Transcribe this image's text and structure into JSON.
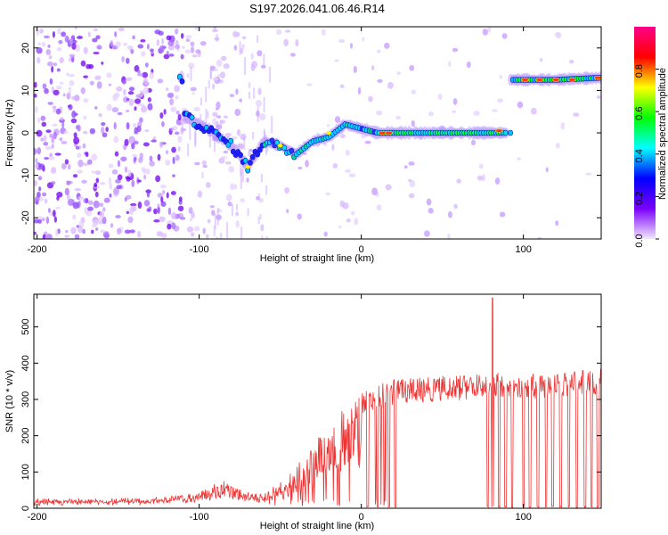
{
  "title": "S197.2026.041.06.46.R14",
  "chart_data": [
    {
      "type": "heatmap",
      "xlabel": "Height of straight line (km)",
      "ylabel": "Frequency (Hz)",
      "xlim": [
        -202,
        148
      ],
      "ylim": [
        -25,
        25
      ],
      "xticks": [
        -200,
        -100,
        0,
        100
      ],
      "yticks": [
        20,
        10,
        0,
        -10,
        -20
      ],
      "colorbar": {
        "label": "Normalized spectral amplitude",
        "range": [
          0,
          1
        ],
        "ticks": [
          "0.0",
          "0.2",
          "0.4",
          "0.6",
          "0.8"
        ],
        "colors": [
          "#f3e8ff",
          "#7a00ff",
          "#0000ff",
          "#00ffff",
          "#00ff00",
          "#ffff00",
          "#ff0000",
          "#ff0088"
        ]
      },
      "ridge": [
        {
          "x": -110,
          "y": 4
        },
        {
          "x": -95,
          "y": 1
        },
        {
          "x": -80,
          "y": -3
        },
        {
          "x": -70,
          "y": -8
        },
        {
          "x": -60,
          "y": -2
        },
        {
          "x": -50,
          "y": -3
        },
        {
          "x": -40,
          "y": -5
        },
        {
          "x": -30,
          "y": -2
        },
        {
          "x": -20,
          "y": -1
        },
        {
          "x": -10,
          "y": 2
        },
        {
          "x": 0,
          "y": 1
        },
        {
          "x": 10,
          "y": 0
        },
        {
          "x": 40,
          "y": 0
        },
        {
          "x": 70,
          "y": 0
        },
        {
          "x": 90,
          "y": 0
        },
        {
          "x": 92,
          "y": 12.5
        },
        {
          "x": 120,
          "y": 12.5
        },
        {
          "x": 148,
          "y": 13
        }
      ]
    },
    {
      "type": "line",
      "xlabel": "Height of straight line (km)",
      "ylabel": "SNR (10 * v/v)",
      "xlim": [
        -202,
        148
      ],
      "ylim": [
        0,
        590
      ],
      "xticks": [
        -200,
        -100,
        0,
        100
      ],
      "yticks": [
        500,
        400,
        300,
        200,
        100,
        0
      ],
      "series_color": "#ee3333",
      "envelope": [
        {
          "x": -202,
          "y": 20
        },
        {
          "x": -150,
          "y": 22
        },
        {
          "x": -120,
          "y": 25
        },
        {
          "x": -100,
          "y": 45
        },
        {
          "x": -85,
          "y": 80
        },
        {
          "x": -70,
          "y": 45
        },
        {
          "x": -60,
          "y": 40
        },
        {
          "x": -45,
          "y": 90
        },
        {
          "x": -35,
          "y": 160
        },
        {
          "x": -20,
          "y": 220
        },
        {
          "x": -10,
          "y": 280
        },
        {
          "x": 0,
          "y": 320
        },
        {
          "x": 10,
          "y": 340
        },
        {
          "x": 20,
          "y": 355
        },
        {
          "x": 50,
          "y": 365
        },
        {
          "x": 70,
          "y": 370
        },
        {
          "x": 80,
          "y": 380
        },
        {
          "x": 100,
          "y": 370
        },
        {
          "x": 148,
          "y": 385
        }
      ],
      "peak": {
        "x": 81,
        "y": 580
      },
      "dropouts_x": [
        4,
        10,
        17,
        21,
        78,
        81,
        85,
        89,
        93,
        100,
        104,
        109,
        114,
        118,
        123,
        128,
        133,
        138,
        142,
        146
      ]
    }
  ]
}
